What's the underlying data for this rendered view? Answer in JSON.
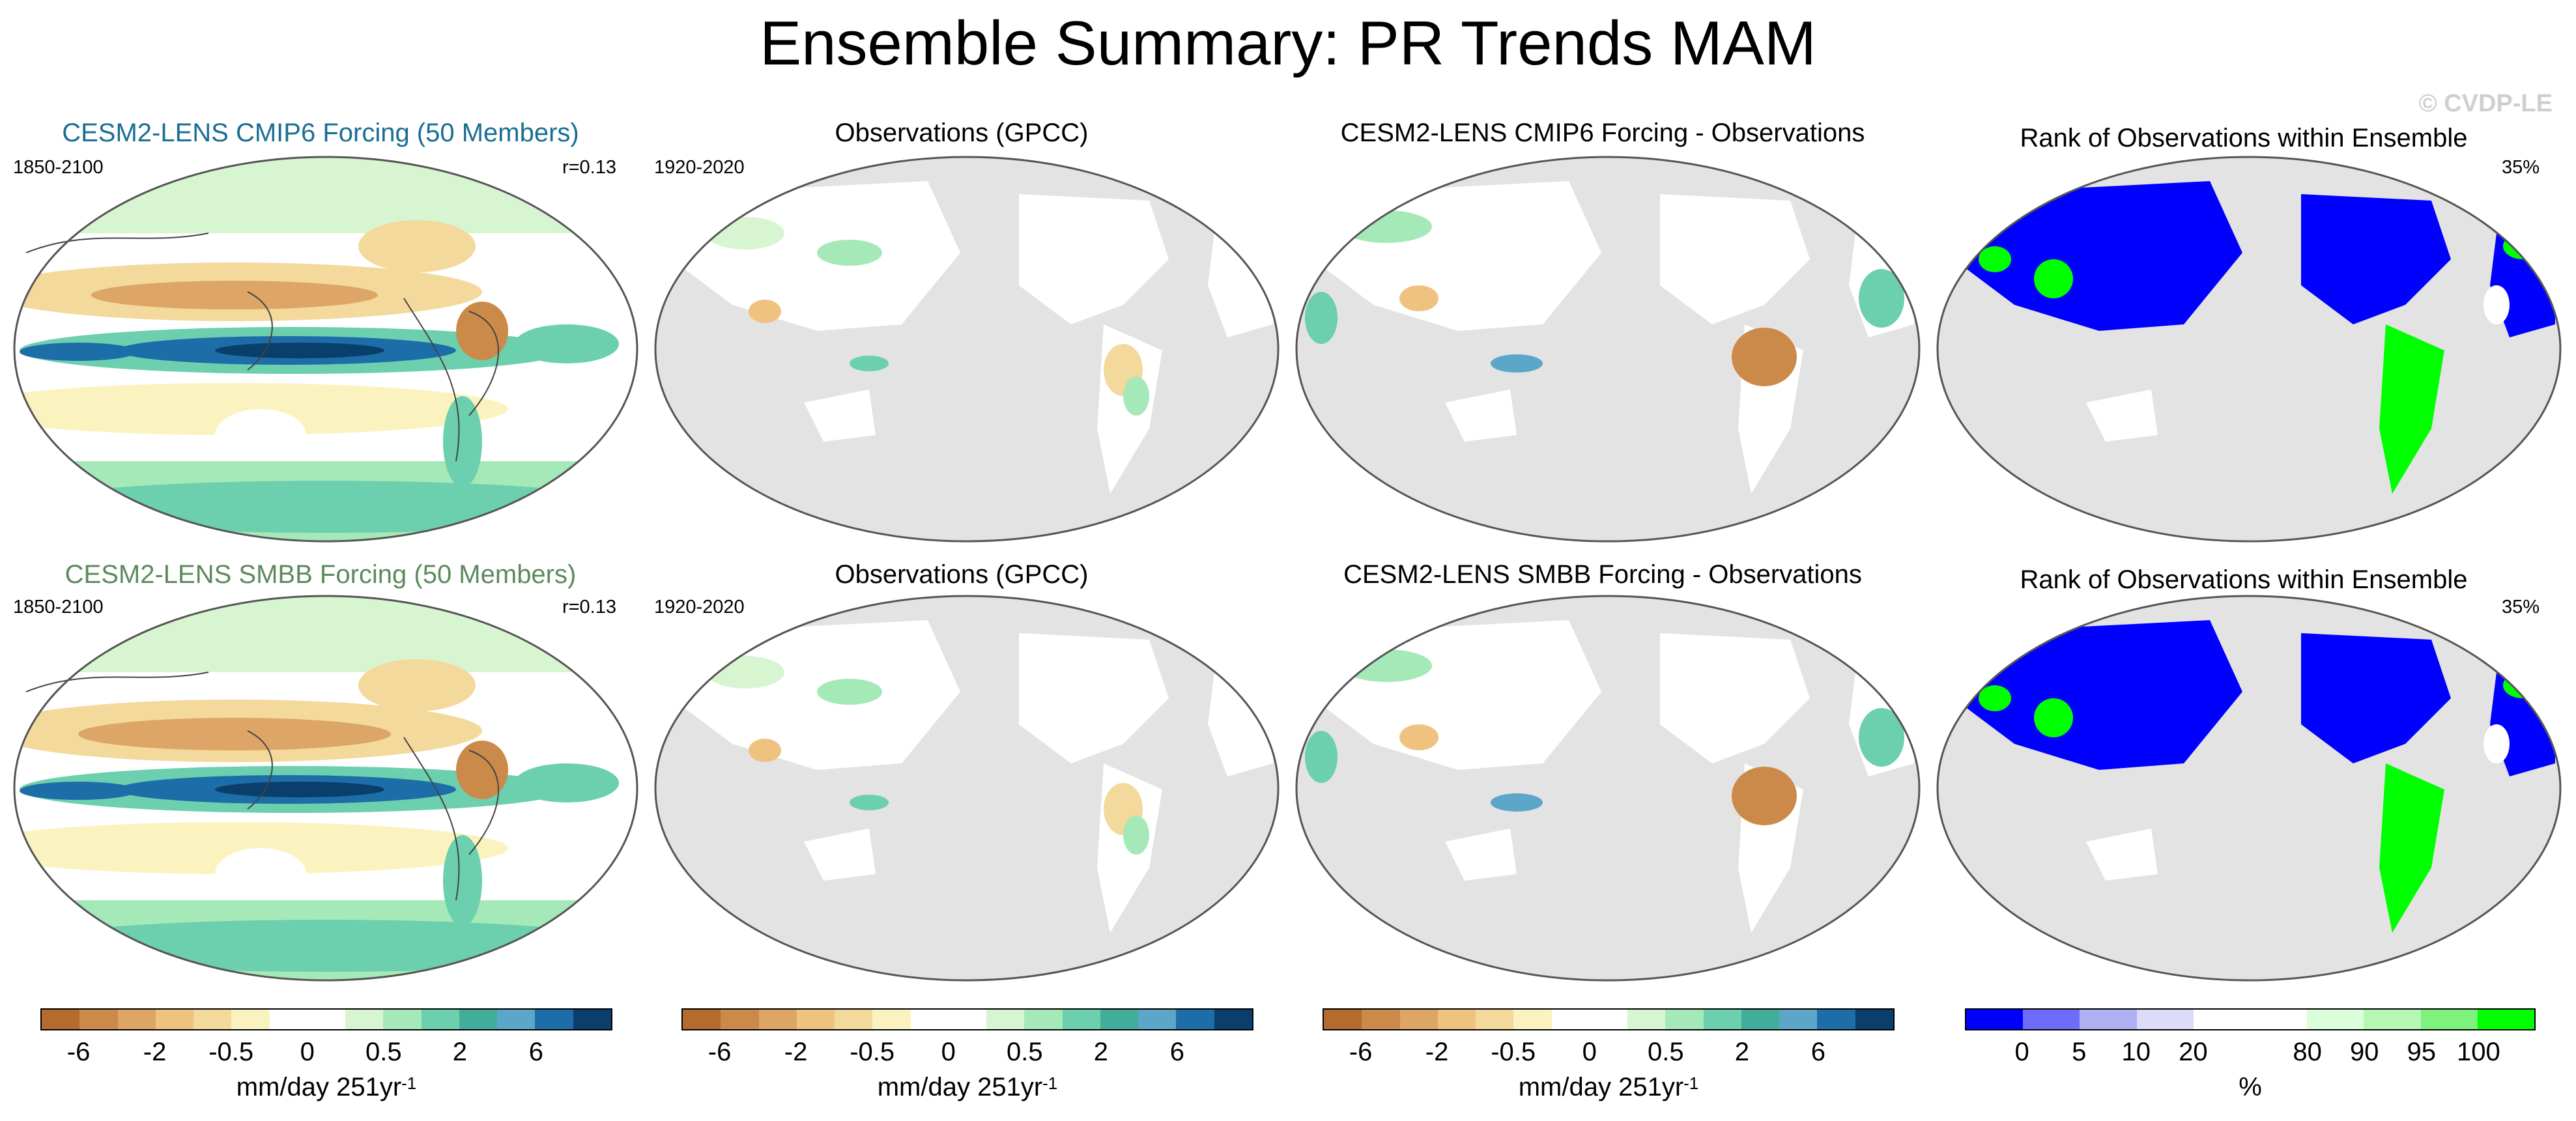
{
  "title": "Ensemble Summary: PR Trends MAM",
  "watermark": "© CVDP-LE",
  "rows": [
    {
      "model_title": "CESM2-LENS CMIP6 Forcing (50 Members)",
      "model_title_color": "#1a6e94",
      "model_years": "1850-2100",
      "model_r": "r=0.13",
      "obs_title": "Observations (GPCC)",
      "obs_years": "1920-2020",
      "diff_title": "CESM2-LENS CMIP6 Forcing - Observations",
      "rank_title": "Rank of Observations within Ensemble",
      "rank_pct": "35%"
    },
    {
      "model_title": "CESM2-LENS SMBB Forcing (50 Members)",
      "model_title_color": "#5c8a5c",
      "model_years": "1850-2100",
      "model_r": "r=0.13",
      "obs_title": "Observations (GPCC)",
      "obs_years": "1920-2020",
      "diff_title": "CESM2-LENS SMBB Forcing - Observations",
      "rank_title": "Rank of Observations within Ensemble",
      "rank_pct": "35%"
    }
  ],
  "colorbars": {
    "trend": {
      "colors": [
        "#b36b2e",
        "#cc8a4a",
        "#dda566",
        "#f0c27f",
        "#f3d99b",
        "#fbf3bf",
        "#ffffff",
        "#ffffff",
        "#d8f5d2",
        "#a6e9b8",
        "#6ccfae",
        "#41ae9c",
        "#5ba6c9",
        "#1d6ea8",
        "#0a3e6b"
      ],
      "ticks": [
        "-6",
        "-2",
        "-0.5",
        "0",
        "0.5",
        "2",
        "6"
      ],
      "unit": "mm/day 251yr",
      "unit_sup": "-1"
    },
    "rank": {
      "colors": [
        "#0000ff",
        "#6d6dfa",
        "#b0b0f5",
        "#dcdcf8",
        "#ffffff",
        "#ffffff",
        "#daffda",
        "#b4f8b4",
        "#7df27d",
        "#00ff00"
      ],
      "ticks": [
        "0",
        "5",
        "10",
        "20",
        "80",
        "90",
        "95",
        "100"
      ],
      "unit": "%"
    }
  },
  "chart_data": [
    {
      "type": "heatmap",
      "title": "CESM2-LENS CMIP6 Forcing (50 Members)",
      "subtitle": "1850-2100",
      "annotation": "r=0.13",
      "units": "mm/day 251yr-1",
      "colorbar_ticks": [
        -6,
        -2,
        -0.5,
        0,
        0.5,
        2,
        6
      ]
    },
    {
      "type": "heatmap",
      "title": "Observations (GPCC)",
      "subtitle": "1920-2020",
      "units": "mm/day 251yr-1",
      "colorbar_ticks": [
        -6,
        -2,
        -0.5,
        0,
        0.5,
        2,
        6
      ]
    },
    {
      "type": "heatmap",
      "title": "CESM2-LENS CMIP6 Forcing - Observations",
      "units": "mm/day 251yr-1",
      "colorbar_ticks": [
        -6,
        -2,
        -0.5,
        0,
        0.5,
        2,
        6
      ]
    },
    {
      "type": "heatmap",
      "title": "Rank of Observations within Ensemble",
      "annotation": "35%",
      "units": "%",
      "colorbar_ticks": [
        0,
        5,
        10,
        20,
        80,
        90,
        95,
        100
      ]
    },
    {
      "type": "heatmap",
      "title": "CESM2-LENS SMBB Forcing (50 Members)",
      "subtitle": "1850-2100",
      "annotation": "r=0.13",
      "units": "mm/day 251yr-1",
      "colorbar_ticks": [
        -6,
        -2,
        -0.5,
        0,
        0.5,
        2,
        6
      ]
    },
    {
      "type": "heatmap",
      "title": "Observations (GPCC)",
      "subtitle": "1920-2020",
      "units": "mm/day 251yr-1",
      "colorbar_ticks": [
        -6,
        -2,
        -0.5,
        0,
        0.5,
        2,
        6
      ]
    },
    {
      "type": "heatmap",
      "title": "CESM2-LENS SMBB Forcing - Observations",
      "units": "mm/day 251yr-1",
      "colorbar_ticks": [
        -6,
        -2,
        -0.5,
        0,
        0.5,
        2,
        6
      ]
    },
    {
      "type": "heatmap",
      "title": "Rank of Observations within Ensemble",
      "annotation": "35%",
      "units": "%",
      "colorbar_ticks": [
        0,
        5,
        10,
        20,
        80,
        90,
        95,
        100
      ]
    }
  ]
}
